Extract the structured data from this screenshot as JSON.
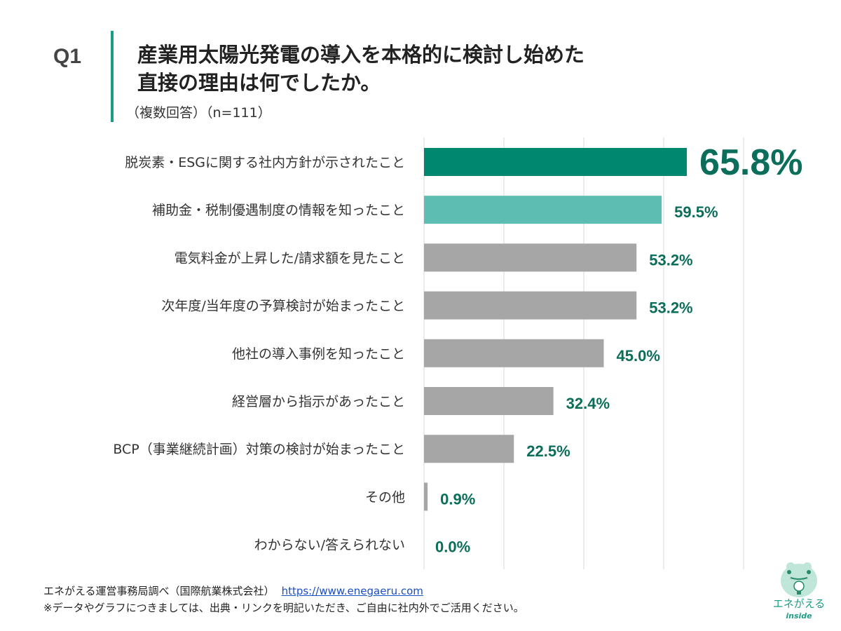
{
  "header": {
    "question_no": "Q1",
    "title_line1": "産業用太陽光発電の導入を本格的に検討し始めた",
    "title_line2": "直接の理由は何でしたか。",
    "subtitle": "（複数回答）（n=111）"
  },
  "chart_data": {
    "type": "bar",
    "orientation": "horizontal",
    "categories": [
      "脱炭素・ESGに関する社内方針が示されたこと",
      "補助金・税制優遇制度の情報を知ったこと",
      "電気料金が上昇した/請求額を見たこと",
      "次年度/当年度の予算検討が始まったこと",
      "他社の導入事例を知ったこと",
      "経営層から指示があったこと",
      "BCP（事業継続計画）対策の検討が始まったこと",
      "その他",
      "わからない/答えられない"
    ],
    "values": [
      65.8,
      59.5,
      53.2,
      53.2,
      45.0,
      32.4,
      22.5,
      0.9,
      0.0
    ],
    "data_labels": [
      "65.8%",
      "59.5%",
      "53.2%",
      "53.2%",
      "45.0%",
      "32.4%",
      "22.5%",
      "0.9%",
      "0.0%"
    ],
    "bar_colors": [
      "#00876f",
      "#5dbdb3",
      "#a6a6a6",
      "#a6a6a6",
      "#a6a6a6",
      "#a6a6a6",
      "#a6a6a6",
      "#a6a6a6",
      "#a6a6a6"
    ],
    "label_color": "#0b6e5a",
    "xlim": [
      0,
      100
    ],
    "grid": true,
    "gridlines": [
      0,
      20,
      40,
      60,
      80
    ]
  },
  "footer": {
    "source": "エネがえる運営事務局調べ（国際航業株式会社）",
    "url": "https://www.enegaeru.com",
    "note": "※データやグラフにつきましては、出典・リンクを明記いただき、ご自由に社内外でご活用ください。"
  },
  "logo": {
    "text": "エネがえる",
    "sub": "inside"
  }
}
